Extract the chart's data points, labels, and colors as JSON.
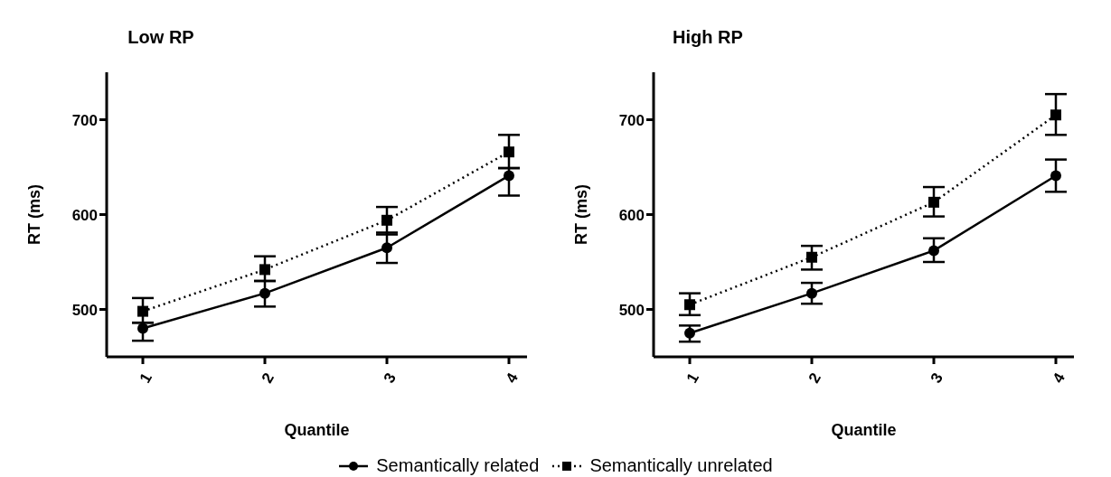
{
  "chart_data": [
    {
      "type": "line",
      "title": "Low RP",
      "xlabel": "Quantile",
      "ylabel": "RT (ms)",
      "categories": [
        "1",
        "2",
        "3",
        "4"
      ],
      "ylim": [
        450,
        750
      ],
      "yticks": [
        500,
        600,
        700
      ],
      "grid": false,
      "legend": "bottom",
      "series": [
        {
          "name": "Semantically related",
          "color": "#000000",
          "marker": "circle",
          "line_style": "solid",
          "values": [
            480,
            517,
            565,
            641
          ],
          "errors": [
            [
              467,
              486
            ],
            [
              503,
              530
            ],
            [
              549,
              581
            ],
            [
              620,
              649
            ]
          ]
        },
        {
          "name": "Semantically unrelated",
          "color": "#000000",
          "marker": "square",
          "line_style": "dotted",
          "values": [
            498,
            542,
            594,
            666
          ],
          "errors": [
            [
              486,
              512
            ],
            [
              530,
              556
            ],
            [
              579,
              608
            ],
            [
              649,
              684
            ]
          ]
        }
      ]
    },
    {
      "type": "line",
      "title": "High RP",
      "xlabel": "Quantile",
      "ylabel": "RT (ms)",
      "categories": [
        "1",
        "2",
        "3",
        "4"
      ],
      "ylim": [
        450,
        750
      ],
      "yticks": [
        500,
        600,
        700
      ],
      "grid": false,
      "series": [
        {
          "color": "#000000",
          "marker": "circle",
          "line_style": "solid",
          "values": [
            475,
            517,
            562,
            641
          ],
          "errors": [
            [
              466,
              483
            ],
            [
              506,
              528
            ],
            [
              550,
              575
            ],
            [
              624,
              658
            ]
          ]
        },
        {
          "color": "#000000",
          "marker": "square",
          "line_style": "dotted",
          "values": [
            505,
            555,
            613,
            705
          ],
          "errors": [
            [
              494,
              517
            ],
            [
              542,
              567
            ],
            [
              598,
              629
            ],
            [
              684,
              727
            ]
          ]
        }
      ]
    }
  ]
}
